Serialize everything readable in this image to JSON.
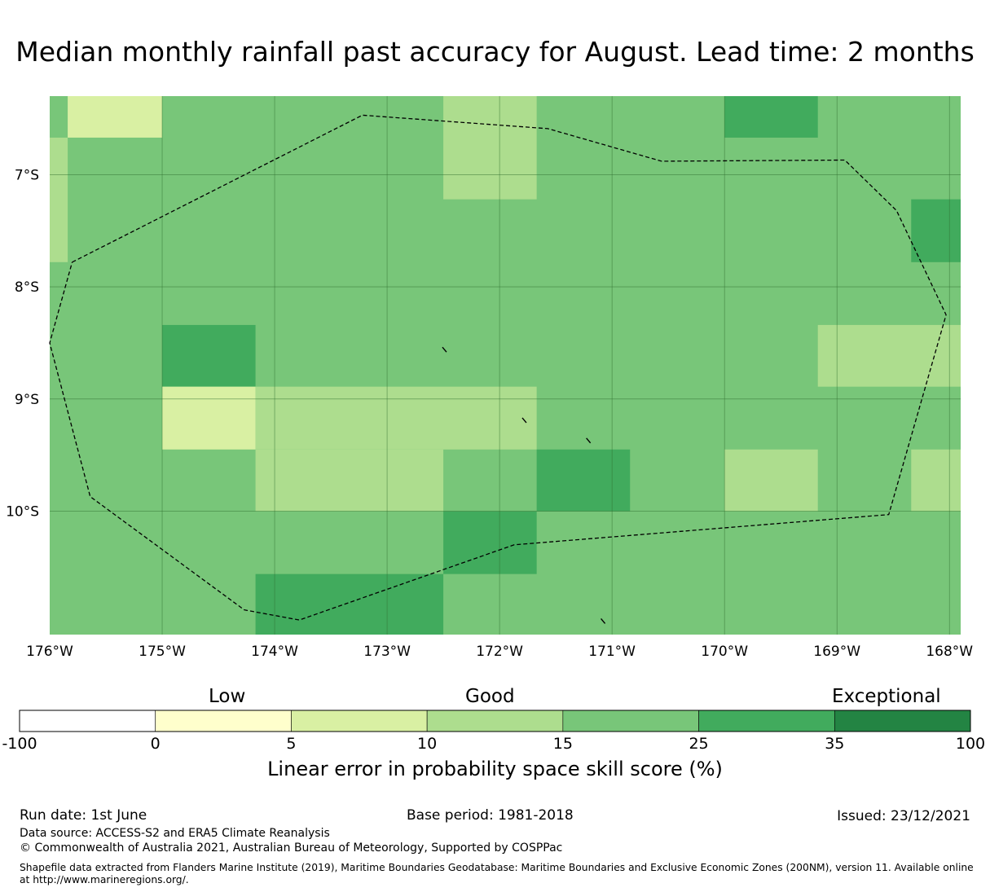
{
  "title": "Median monthly rainfall past accuracy for August. Lead time: 2 months",
  "map": {
    "lon_range": [
      -176,
      -167.9
    ],
    "lat_range": [
      -11.1,
      -6.3
    ],
    "lat_ticks": [
      {
        "value": -7,
        "label": "7°S"
      },
      {
        "value": -8,
        "label": "8°S"
      },
      {
        "value": -9,
        "label": "9°S"
      },
      {
        "value": -10,
        "label": "10°S"
      }
    ],
    "lon_ticks": [
      {
        "value": -176,
        "label": "176°W"
      },
      {
        "value": -175,
        "label": "175°W"
      },
      {
        "value": -174,
        "label": "174°W"
      },
      {
        "value": -173,
        "label": "173°W"
      },
      {
        "value": -172,
        "label": "172°W"
      },
      {
        "value": -171,
        "label": "171°W"
      },
      {
        "value": -170,
        "label": "170°W"
      },
      {
        "value": -169,
        "label": "169°W"
      },
      {
        "value": -168,
        "label": "168°W"
      }
    ],
    "colors": {
      "c3": "#d9f0a3",
      "c4": "#addd8e",
      "c5": "#78c679",
      "c6": "#41ab5d"
    },
    "background_class": "c5",
    "cells": [
      {
        "lon": [
          -175.84,
          -175.0
        ],
        "lat": [
          -6.67,
          -6.3
        ],
        "class": "c3"
      },
      {
        "lon": [
          -176.0,
          -175.84
        ],
        "lat": [
          -7.78,
          -6.67
        ],
        "class": "c4"
      },
      {
        "lon": [
          -172.5,
          -171.67
        ],
        "lat": [
          -7.22,
          -6.3
        ],
        "class": "c4"
      },
      {
        "lon": [
          -170.0,
          -169.17
        ],
        "lat": [
          -6.67,
          -6.3
        ],
        "class": "c6"
      },
      {
        "lon": [
          -168.34,
          -167.9
        ],
        "lat": [
          -7.78,
          -7.22
        ],
        "class": "c6"
      },
      {
        "lon": [
          -175.0,
          -174.17
        ],
        "lat": [
          -8.89,
          -8.34
        ],
        "class": "c6"
      },
      {
        "lon": [
          -169.17,
          -167.9
        ],
        "lat": [
          -8.89,
          -8.34
        ],
        "class": "c4"
      },
      {
        "lon": [
          -175.0,
          -174.17
        ],
        "lat": [
          -9.45,
          -8.89
        ],
        "class": "c3"
      },
      {
        "lon": [
          -174.17,
          -171.67
        ],
        "lat": [
          -9.45,
          -8.89
        ],
        "class": "c4"
      },
      {
        "lon": [
          -174.17,
          -172.5
        ],
        "lat": [
          -10.0,
          -9.45
        ],
        "class": "c4"
      },
      {
        "lon": [
          -171.67,
          -170.84
        ],
        "lat": [
          -10.0,
          -9.45
        ],
        "class": "c6"
      },
      {
        "lon": [
          -170.0,
          -169.17
        ],
        "lat": [
          -10.0,
          -9.45
        ],
        "class": "c4"
      },
      {
        "lon": [
          -168.34,
          -167.9
        ],
        "lat": [
          -10.0,
          -9.45
        ],
        "class": "c4"
      },
      {
        "lon": [
          -172.5,
          -171.67
        ],
        "lat": [
          -10.56,
          -10.0
        ],
        "class": "c6"
      },
      {
        "lon": [
          -174.17,
          -172.5
        ],
        "lat": [
          -11.1,
          -10.56
        ],
        "class": "c6"
      }
    ],
    "eez_boundary": [
      [
        -175.8,
        -7.78
      ],
      [
        -173.22,
        -6.47
      ],
      [
        -171.57,
        -6.59
      ],
      [
        -170.56,
        -6.88
      ],
      [
        -168.93,
        -6.87
      ],
      [
        -168.47,
        -7.32
      ],
      [
        -168.03,
        -8.25
      ],
      [
        -168.54,
        -10.03
      ],
      [
        -171.87,
        -10.3
      ],
      [
        -173.78,
        -10.97
      ],
      [
        -174.27,
        -10.88
      ],
      [
        -175.64,
        -9.87
      ],
      [
        -176.0,
        -8.5
      ],
      [
        -175.8,
        -7.78
      ]
    ],
    "islands": [
      {
        "lon": -172.49,
        "lat": -8.56
      },
      {
        "lon": -171.78,
        "lat": -9.19
      },
      {
        "lon": -171.21,
        "lat": -9.37
      },
      {
        "lon": -171.08,
        "lat": -10.98
      }
    ]
  },
  "colorbar": {
    "categories": [
      "Low",
      "Good",
      "Exceptional"
    ],
    "ticks": [
      "-100",
      "0",
      "5",
      "10",
      "15",
      "25",
      "35",
      "100"
    ],
    "colors": [
      "#ffffff",
      "#ffffcc",
      "#d9f0a3",
      "#addd8e",
      "#78c679",
      "#41ab5d",
      "#238443"
    ],
    "title": "Linear error in probability space skill score (%)"
  },
  "footer": {
    "run_date": "Run date: 1st June",
    "base_period": "Base period: 1981-2018",
    "issued": "Issued: 23/12/2021",
    "data_source": "Data source: ACCESS-S2 and ERA5 Climate Reanalysis",
    "copyright": "© Commonwealth of Australia 2021, Australian Bureau of Meteorology, Supported by COSPPac",
    "shapefile": "Shapefile data extracted from Flanders Marine Institute (2019), Maritime Boundaries Geodatabase: Maritime Boundaries and Exclusive Economic Zones (200NM), version 11. Available online at http://www.marineregions.org/."
  }
}
